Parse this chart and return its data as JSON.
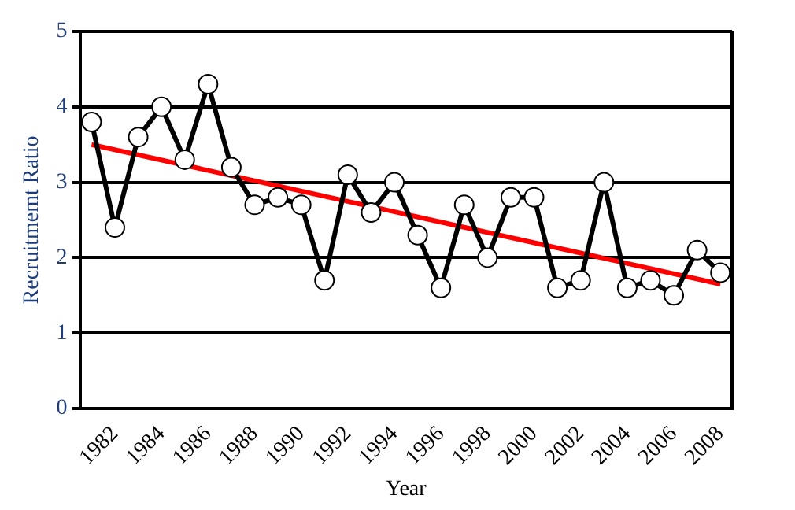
{
  "chart_data": {
    "type": "line",
    "xlabel": "Year",
    "ylabel": "Recruitmemt Ratio",
    "categories": [
      null,
      "1982",
      null,
      "1984",
      null,
      "1986",
      null,
      "1988",
      null,
      "1990",
      null,
      "1992",
      null,
      "1994",
      null,
      "1996",
      null,
      "1998",
      null,
      "2000",
      null,
      "2002",
      null,
      "2004",
      null,
      "2006",
      null,
      "2008"
    ],
    "series": [
      {
        "color": "#000000",
        "marker": "circle",
        "values": [
          3.8,
          2.4,
          3.6,
          4.0,
          3.3,
          4.3,
          3.2,
          2.7,
          2.8,
          2.7,
          1.7,
          3.1,
          2.6,
          3.0,
          2.3,
          1.6,
          2.7,
          2.0,
          2.8,
          2.8,
          1.6,
          1.7,
          3.0,
          1.6,
          1.7,
          1.5,
          2.1,
          1.8
        ]
      },
      {
        "color": "#ff0000",
        "marker": "none",
        "values": [
          3.5,
          null,
          null,
          null,
          null,
          null,
          null,
          null,
          null,
          null,
          null,
          null,
          null,
          null,
          null,
          null,
          null,
          null,
          null,
          null,
          null,
          null,
          null,
          null,
          null,
          null,
          null,
          1.65
        ]
      }
    ],
    "ylim": [
      0,
      5
    ],
    "yticks": [
      0,
      1,
      2,
      3,
      4,
      5
    ],
    "grid": "y",
    "legend": false
  }
}
